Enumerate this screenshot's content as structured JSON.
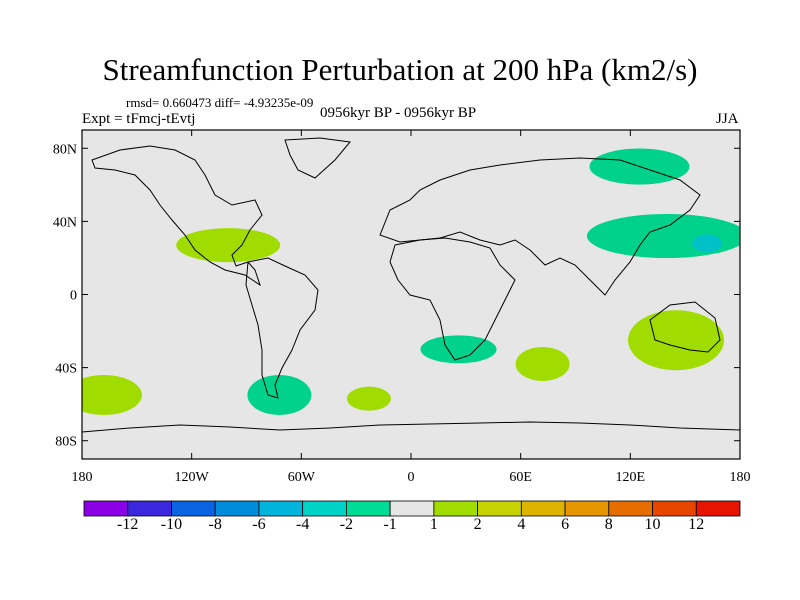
{
  "figure": {
    "title": "Streamfunction Perturbation at 200 hPa (km2/s)",
    "stats_line": "rmsd= 0.660473 diff= -4.93235e-09",
    "experiment_label": "Expt = tFmcj-tEvtj",
    "period_label": "0956kyr BP - 0956kyr BP",
    "season_label": "JJA"
  },
  "map": {
    "projection": "cylindrical-equidistant",
    "background_color": "#e6e6e6",
    "lat_ticks": [
      "80N",
      "40N",
      "0",
      "40S",
      "80S"
    ],
    "lat_values": [
      80,
      40,
      0,
      -40,
      -80
    ],
    "lon_ticks": [
      "180",
      "120W",
      "60W",
      "0",
      "60E",
      "120E",
      "180"
    ],
    "lon_values": [
      -180,
      -120,
      -60,
      0,
      60,
      120,
      180
    ],
    "lat_range": [
      -90,
      90
    ],
    "lon_range": [
      -180,
      180
    ]
  },
  "anomaly_regions": [
    {
      "name": "pacific-north-center",
      "center_lon": 140,
      "center_lat": 32,
      "color": "#00d28c",
      "level": "-2 to -1"
    },
    {
      "name": "pacific-north-core",
      "center_lon": 162,
      "center_lat": 28,
      "color": "#00c0c8",
      "level": "-4 to -2"
    },
    {
      "name": "arctic-siberia",
      "center_lon": 125,
      "center_lat": 70,
      "color": "#00d28c",
      "level": "-2 to -1"
    },
    {
      "name": "central-america",
      "center_lon": -100,
      "center_lat": 27,
      "color": "#a0dc00",
      "level": "1 to 2"
    },
    {
      "name": "south-africa",
      "center_lon": 26,
      "center_lat": -30,
      "color": "#00d28c",
      "level": "-2 to -1"
    },
    {
      "name": "south-indian",
      "center_lon": 72,
      "center_lat": -38,
      "color": "#a0dc00",
      "level": "1 to 2"
    },
    {
      "name": "australia",
      "center_lon": 145,
      "center_lat": -25,
      "color": "#a0dc00",
      "level": "1 to 2"
    },
    {
      "name": "south-pacific-west",
      "center_lon": -168,
      "center_lat": -55,
      "color": "#a0dc00",
      "level": "1 to 2"
    },
    {
      "name": "south-america-south",
      "center_lon": -72,
      "center_lat": -55,
      "color": "#00d28c",
      "level": "-2 to -1"
    },
    {
      "name": "south-atlantic",
      "center_lon": -23,
      "center_lat": -57,
      "color": "#a0dc00",
      "level": "1 to 2"
    }
  ],
  "colorbar": {
    "colors": [
      "#8c00e6",
      "#3c28dc",
      "#0a64e1",
      "#008cdc",
      "#00b4dc",
      "#00d2c8",
      "#00dc96",
      "#e6e6e6",
      "#a0dc00",
      "#c8d200",
      "#dcb400",
      "#e69600",
      "#e66e00",
      "#e64600",
      "#e61400"
    ],
    "labels": [
      "-12",
      "-10",
      "-8",
      "-6",
      "-4",
      "-2",
      "-1",
      "1",
      "2",
      "4",
      "6",
      "8",
      "10",
      "12"
    ]
  }
}
